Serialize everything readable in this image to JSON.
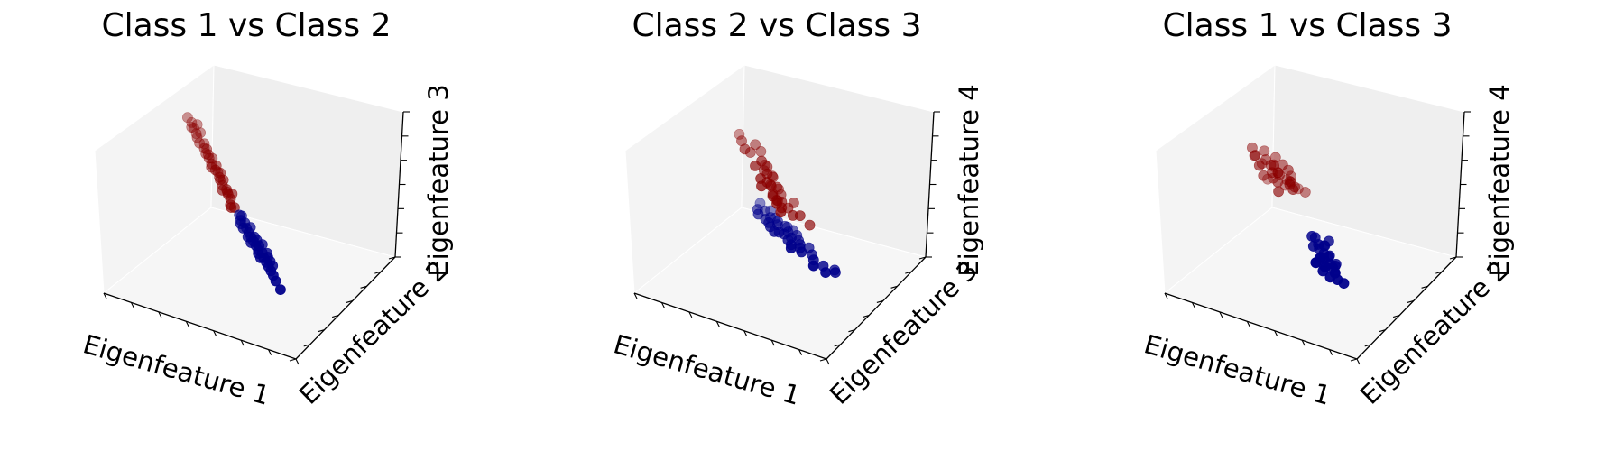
{
  "colors": {
    "class_a": "#8b0000",
    "class_b": "#00008b"
  },
  "chart_data": [
    {
      "type": "scatter",
      "title": "Class 1 vs Class 2",
      "xlabel": "Eigenfeature 1",
      "ylabel": "Eigenfeature 2",
      "zlabel": "Eigenfeature 3",
      "projection": "3d",
      "grid": false,
      "series": [
        {
          "points": [
            [
              -5.0,
              2.0,
              4.4
            ],
            [
              -4.8,
              2.1,
              4.0
            ],
            [
              -4.6,
              2.0,
              3.7
            ],
            [
              -4.4,
              1.9,
              3.4
            ],
            [
              -4.3,
              1.8,
              3.2
            ],
            [
              -4.1,
              1.7,
              2.9
            ],
            [
              -3.9,
              1.9,
              2.8
            ],
            [
              -3.7,
              1.8,
              2.5
            ],
            [
              -3.5,
              1.6,
              2.3
            ],
            [
              -3.4,
              1.5,
              2.1
            ],
            [
              -3.2,
              1.4,
              1.8
            ],
            [
              -3.0,
              1.6,
              1.6
            ],
            [
              -2.8,
              1.4,
              1.3
            ],
            [
              -2.6,
              1.2,
              1.1
            ],
            [
              -2.4,
              1.3,
              0.9
            ],
            [
              -2.3,
              1.0,
              0.7
            ],
            [
              -2.1,
              1.1,
              0.4
            ],
            [
              -1.9,
              0.9,
              0.2
            ],
            [
              -1.7,
              0.8,
              0.0
            ],
            [
              -1.6,
              0.6,
              -0.3
            ],
            [
              -1.4,
              0.7,
              -0.5
            ],
            [
              -4.5,
              2.2,
              3.9
            ],
            [
              -4.2,
              2.0,
              3.5
            ],
            [
              -3.8,
              1.7,
              2.6
            ],
            [
              -3.3,
              1.7,
              2.0
            ],
            [
              -2.9,
              1.3,
              1.5
            ],
            [
              -2.5,
              1.1,
              1.0
            ],
            [
              -2.0,
              1.0,
              0.3
            ],
            [
              -1.5,
              0.5,
              -0.4
            ],
            [
              -3.6,
              1.5,
              2.4
            ],
            [
              -2.7,
              1.5,
              1.2
            ],
            [
              -1.8,
              1.2,
              0.1
            ],
            [
              -4.7,
              1.9,
              3.8
            ],
            [
              -3.1,
              1.2,
              1.7
            ],
            [
              -2.2,
              0.8,
              0.5
            ]
          ]
        },
        {
          "points": [
            [
              -1.0,
              0.5,
              -0.8
            ],
            [
              -0.8,
              0.3,
              -1.0
            ],
            [
              -0.6,
              0.4,
              -1.2
            ],
            [
              -0.4,
              0.2,
              -1.4
            ],
            [
              -0.2,
              0.1,
              -1.6
            ],
            [
              0.0,
              0.0,
              -1.8
            ],
            [
              0.2,
              -0.1,
              -2.0
            ],
            [
              0.4,
              -0.2,
              -2.2
            ],
            [
              0.6,
              -0.3,
              -2.4
            ],
            [
              0.8,
              -0.2,
              -2.6
            ],
            [
              1.0,
              -0.4,
              -2.8
            ],
            [
              1.2,
              -0.5,
              -3.0
            ],
            [
              1.4,
              -0.6,
              -3.2
            ],
            [
              1.6,
              -0.7,
              -3.4
            ],
            [
              1.8,
              -0.8,
              -3.6
            ],
            [
              -0.9,
              0.6,
              -0.9
            ],
            [
              -0.5,
              0.0,
              -1.3
            ],
            [
              -0.1,
              -0.2,
              -1.7
            ],
            [
              0.3,
              0.1,
              -2.0
            ],
            [
              0.7,
              -0.5,
              -2.5
            ],
            [
              1.1,
              -0.1,
              -2.9
            ],
            [
              1.5,
              -0.3,
              -3.3
            ],
            [
              -0.7,
              0.1,
              -1.1
            ],
            [
              0.1,
              0.2,
              -1.9
            ],
            [
              0.5,
              0.0,
              -2.3
            ],
            [
              0.9,
              -0.6,
              -2.7
            ],
            [
              1.3,
              -0.2,
              -3.1
            ],
            [
              2.0,
              -0.9,
              -3.9
            ],
            [
              2.4,
              -1.1,
              -4.3
            ],
            [
              -0.3,
              0.5,
              -1.5
            ],
            [
              0.2,
              -0.4,
              -1.9
            ],
            [
              0.6,
              0.2,
              -2.3
            ],
            [
              1.0,
              0.0,
              -2.7
            ]
          ]
        }
      ]
    },
    {
      "type": "scatter",
      "title": "Class 2 vs Class 3",
      "xlabel": "Eigenfeature 1",
      "ylabel": "Eigenfeature 3",
      "zlabel": "Eigenfeature 4",
      "projection": "3d",
      "grid": false,
      "series": [
        {
          "points": [
            [
              -2.5,
              0.0,
              5.0
            ],
            [
              -2.2,
              -0.2,
              4.6
            ],
            [
              -1.8,
              0.3,
              4.8
            ],
            [
              -1.5,
              0.4,
              4.3
            ],
            [
              -2.0,
              0.1,
              4.2
            ],
            [
              -1.2,
              -0.1,
              4.0
            ],
            [
              -1.5,
              -0.3,
              3.6
            ],
            [
              -1.0,
              0.2,
              3.4
            ],
            [
              -1.3,
              0.5,
              3.2
            ],
            [
              -0.9,
              0.0,
              3.0
            ],
            [
              -1.1,
              -0.4,
              2.8
            ],
            [
              -0.7,
              0.3,
              2.6
            ],
            [
              -0.9,
              0.6,
              2.4
            ],
            [
              -0.6,
              -0.1,
              2.2
            ],
            [
              -0.8,
              0.2,
              2.0
            ],
            [
              -0.5,
              0.4,
              1.8
            ],
            [
              -0.4,
              -0.3,
              1.6
            ],
            [
              -0.6,
              0.1,
              1.4
            ],
            [
              -0.3,
              0.5,
              1.2
            ],
            [
              -0.2,
              -0.2,
              1.0
            ],
            [
              -0.4,
              0.3,
              0.8
            ],
            [
              0.0,
              0.0,
              0.6
            ],
            [
              0.2,
              0.4,
              0.4
            ],
            [
              -1.2,
              0.2,
              3.0
            ],
            [
              -0.8,
              -0.2,
              2.5
            ],
            [
              -0.5,
              0.6,
              1.5
            ],
            [
              -0.1,
              0.2,
              0.9
            ],
            [
              0.4,
              0.7,
              0.7
            ],
            [
              1.0,
              0.3,
              0.2
            ],
            [
              1.5,
              0.5,
              -0.5
            ],
            [
              -1.0,
              -0.5,
              2.3
            ],
            [
              -0.3,
              0.0,
              1.1
            ],
            [
              0.1,
              -0.3,
              0.5
            ],
            [
              0.6,
              0.2,
              0.1
            ],
            [
              -2.8,
              0.3,
              5.2
            ]
          ]
        },
        {
          "points": [
            [
              -1.5,
              0.0,
              -0.2
            ],
            [
              -1.2,
              0.3,
              -0.4
            ],
            [
              -0.9,
              -0.2,
              -0.6
            ],
            [
              -0.6,
              0.4,
              -0.8
            ],
            [
              -0.3,
              0.1,
              -1.0
            ],
            [
              0.0,
              -0.3,
              -1.2
            ],
            [
              0.3,
              0.2,
              -1.4
            ],
            [
              0.6,
              0.0,
              -1.6
            ],
            [
              -1.0,
              0.6,
              -0.5
            ],
            [
              -0.5,
              -0.4,
              -0.9
            ],
            [
              0.1,
              0.5,
              -1.3
            ],
            [
              0.5,
              -0.2,
              -1.7
            ],
            [
              0.9,
              0.3,
              -1.9
            ],
            [
              1.2,
              -0.1,
              -2.1
            ],
            [
              -0.8,
              0.2,
              -0.7
            ],
            [
              -0.2,
              -0.5,
              -1.1
            ],
            [
              0.4,
              0.6,
              -1.5
            ],
            [
              0.8,
              -0.4,
              -1.8
            ],
            [
              1.1,
              0.1,
              -2.0
            ],
            [
              1.5,
              0.4,
              -2.3
            ],
            [
              -1.3,
              -0.3,
              -0.3
            ],
            [
              -0.4,
              0.3,
              -0.9
            ],
            [
              0.2,
              -0.1,
              -1.4
            ],
            [
              0.7,
              0.5,
              -1.7
            ],
            [
              1.4,
              -0.3,
              -2.2
            ],
            [
              2.0,
              0.0,
              -2.8
            ],
            [
              2.5,
              0.2,
              -3.2
            ],
            [
              2.8,
              -0.1,
              -3.4
            ],
            [
              3.2,
              0.3,
              -3.5
            ],
            [
              -1.6,
              0.5,
              -0.1
            ],
            [
              -0.7,
              -0.2,
              -0.8
            ],
            [
              0.0,
              0.4,
              -1.2
            ],
            [
              0.9,
              -0.6,
              -1.9
            ],
            [
              1.8,
              0.2,
              -2.6
            ],
            [
              2.2,
              -0.4,
              -2.9
            ],
            [
              3.0,
              0.6,
              -3.6
            ]
          ]
        }
      ]
    },
    {
      "type": "scatter",
      "title": "Class 1 vs Class 3",
      "xlabel": "Eigenfeature 1",
      "ylabel": "Eigenfeature 2",
      "zlabel": "Eigenfeature 4",
      "projection": "3d",
      "grid": false,
      "series": [
        {
          "points": [
            [
              -4.0,
              0.5,
              3.4
            ],
            [
              -3.7,
              0.2,
              3.1
            ],
            [
              -3.4,
              0.8,
              3.2
            ],
            [
              -3.1,
              0.4,
              2.9
            ],
            [
              -2.8,
              1.0,
              2.8
            ],
            [
              -3.3,
              0.0,
              2.6
            ],
            [
              -2.9,
              0.6,
              2.4
            ],
            [
              -2.6,
              0.2,
              2.2
            ],
            [
              -2.3,
              0.9,
              2.5
            ],
            [
              -3.6,
              0.9,
              2.0
            ],
            [
              -3.0,
              1.2,
              1.8
            ],
            [
              -2.5,
              0.7,
              1.9
            ],
            [
              -2.2,
              0.3,
              2.1
            ],
            [
              -1.9,
              0.8,
              2.3
            ],
            [
              -3.2,
              0.3,
              1.6
            ],
            [
              -2.7,
              1.1,
              1.5
            ],
            [
              -2.4,
              0.5,
              1.3
            ],
            [
              -2.0,
              1.3,
              1.4
            ],
            [
              -1.7,
              0.6,
              1.6
            ],
            [
              -2.9,
              0.9,
              1.1
            ],
            [
              -2.1,
              0.0,
              1.0
            ],
            [
              -1.6,
              1.0,
              0.9
            ],
            [
              -1.4,
              0.4,
              1.2
            ],
            [
              -3.5,
              1.4,
              0.4
            ],
            [
              -2.5,
              1.6,
              0.2
            ],
            [
              -1.8,
              1.8,
              0.1
            ],
            [
              -1.2,
              1.5,
              0.3
            ],
            [
              -3.9,
              0.7,
              2.7
            ],
            [
              -2.6,
              0.4,
              2.7
            ],
            [
              -1.5,
              0.2,
              1.7
            ],
            [
              -2.3,
              1.4,
              0.9
            ],
            [
              -1.9,
              1.1,
              1.1
            ]
          ]
        },
        {
          "points": [
            [
              0.5,
              -0.6,
              -1.2
            ],
            [
              0.8,
              -0.8,
              -1.5
            ],
            [
              1.0,
              -0.4,
              -1.8
            ],
            [
              1.2,
              -0.9,
              -2.0
            ],
            [
              1.4,
              -0.6,
              -2.3
            ],
            [
              1.6,
              -1.0,
              -2.6
            ],
            [
              1.8,
              -0.7,
              -2.9
            ],
            [
              2.0,
              -1.1,
              -3.1
            ],
            [
              0.6,
              -1.0,
              -1.6
            ],
            [
              0.9,
              -0.3,
              -1.9
            ],
            [
              1.1,
              -1.2,
              -2.2
            ],
            [
              1.3,
              -0.5,
              -2.5
            ],
            [
              1.5,
              -1.3,
              -2.7
            ],
            [
              1.7,
              -0.4,
              -3.0
            ],
            [
              1.9,
              -0.9,
              -3.3
            ],
            [
              2.2,
              -1.2,
              -3.5
            ],
            [
              2.5,
              -1.0,
              -3.8
            ],
            [
              0.7,
              -0.5,
              -2.1
            ],
            [
              1.0,
              -0.9,
              -2.4
            ],
            [
              1.3,
              -1.1,
              -2.8
            ],
            [
              1.6,
              -0.6,
              -3.2
            ],
            [
              0.9,
              -1.3,
              -2.6
            ],
            [
              1.2,
              -0.3,
              -1.4
            ],
            [
              0.4,
              -0.8,
              -1.0
            ],
            [
              1.4,
              -1.4,
              -3.0
            ],
            [
              1.8,
              -1.3,
              -3.4
            ],
            [
              0.8,
              -1.1,
              -2.8
            ],
            [
              1.1,
              -0.7,
              -2.6
            ]
          ]
        }
      ]
    }
  ]
}
